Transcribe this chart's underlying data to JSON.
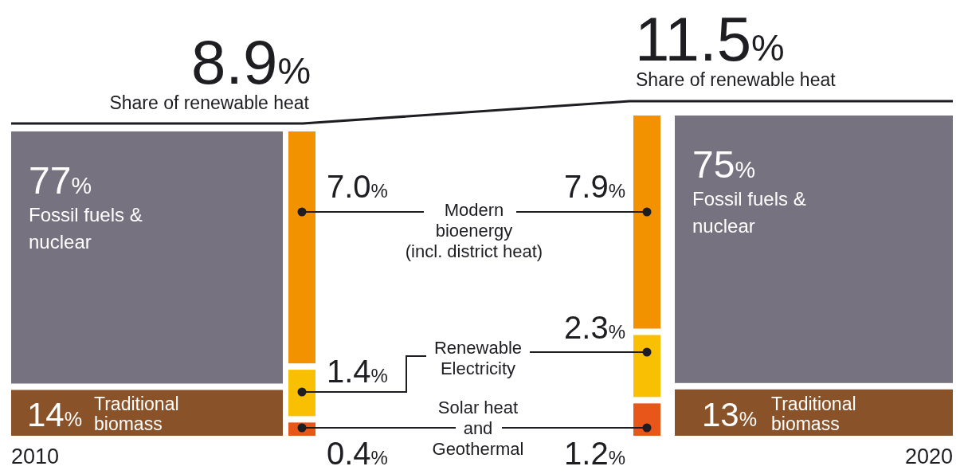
{
  "chart_data": {
    "type": "other",
    "categories": [
      "Fossil fuels &\nnuclear",
      "Traditional\nbiomass",
      "Modern\nbioenergy\n(incl. district heat)",
      "Renewable\nElectricity",
      "Solar heat\nand\nGeothermal"
    ],
    "series": [
      {
        "name": "2010",
        "colors": [
          "#76727f",
          "#8a5228",
          "#f39200",
          "#f9c003",
          "#e8561a"
        ],
        "values": [
          77,
          14,
          7.0,
          1.4,
          0.4
        ],
        "value_labels": [
          "77%",
          "14%",
          "7.0%",
          "1.4%",
          "0.4%"
        ]
      },
      {
        "name": "2020",
        "colors": [
          "#76727f",
          "#8a5228",
          "#f39200",
          "#f9c003",
          "#e8561a"
        ],
        "values": [
          75,
          13,
          7.9,
          2.3,
          1.2
        ],
        "value_labels": [
          "75%",
          "13%",
          "7.9%",
          "2.3%",
          "1.2%"
        ]
      }
    ],
    "totals": [
      "8.9%",
      "11.5%"
    ],
    "annotations": [
      "Share of renewable heat",
      "Share of renewable heat"
    ]
  }
}
